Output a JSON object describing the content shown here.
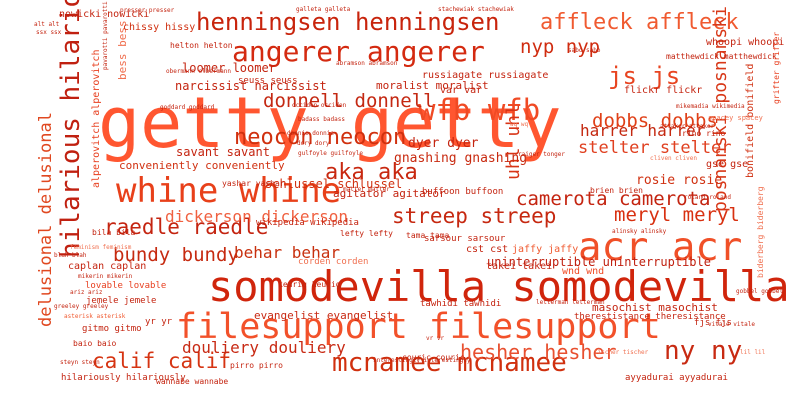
{
  "palette": [
    "#d62a0e",
    "#e8401a",
    "#f25a2c",
    "#c41f0a",
    "#ff6a3d",
    "#f07050"
  ],
  "words": [
    {
      "text": "getty getty",
      "color": "#ff5630"
    },
    {
      "text": "somodevilla somodevilla",
      "color": "#d0250c"
    },
    {
      "text": "filesupport filesupport",
      "color": "#f2512a"
    },
    {
      "text": "whine whine",
      "color": "#e8401a"
    },
    {
      "text": "acr acr",
      "color": "#f05028"
    },
    {
      "text": "angerer angerer",
      "color": "#d42a10"
    },
    {
      "text": "henningsen henningsen",
      "color": "#c8240c"
    },
    {
      "text": "hilarious hilarious",
      "color": "#c02010"
    },
    {
      "text": "delusional delusional",
      "color": "#e04820"
    },
    {
      "text": "mcnamee mcnamee",
      "color": "#d0300e"
    },
    {
      "text": "streep streep",
      "color": "#c62810"
    },
    {
      "text": "affleck affleck",
      "color": "#f05a30"
    },
    {
      "text": "hesher hesher",
      "color": "#e85030"
    },
    {
      "text": "ny ny",
      "color": "#c82a12"
    },
    {
      "text": "calif calif",
      "color": "#d63412"
    },
    {
      "text": "camerota camerota",
      "color": "#c42410"
    },
    {
      "text": "meryl meryl",
      "color": "#d83010"
    },
    {
      "text": "posnanski posnanski",
      "color": "#d83818"
    },
    {
      "text": "wfb wfb",
      "color": "#f04a24"
    },
    {
      "text": "js js",
      "color": "#e84420"
    },
    {
      "text": "neocon neocon",
      "color": "#d0300e"
    },
    {
      "text": "aka aka",
      "color": "#c82810"
    },
    {
      "text": "donnell donnell",
      "color": "#c42812"
    },
    {
      "text": "dobbs dobbs",
      "color": "#e04018"
    },
    {
      "text": "raedle raedle",
      "color": "#c42410"
    },
    {
      "text": "bundy bundy",
      "color": "#c62a10"
    },
    {
      "text": "behar behar",
      "color": "#c8300e"
    },
    {
      "text": "dickerson dickerson",
      "color": "#f06040"
    },
    {
      "text": "douliery douliery",
      "color": "#c82a14"
    },
    {
      "text": "uhl uhl",
      "color": "#d83416"
    },
    {
      "text": "nyp nyp",
      "color": "#d02c10"
    },
    {
      "text": "harrer harrer",
      "color": "#c42810"
    },
    {
      "text": "stelter stelter",
      "color": "#e04020"
    },
    {
      "text": "rosie rosie",
      "color": "#d03010"
    },
    {
      "text": "uninterruptible uninterruptible",
      "color": "#c02010"
    },
    {
      "text": "evangelist evangelist",
      "color": "#c82a14"
    },
    {
      "text": "masochist masochist",
      "color": "#c42410"
    },
    {
      "text": "savant savant",
      "color": "#c42410"
    },
    {
      "text": "conveniently conveniently",
      "color": "#d03010"
    },
    {
      "text": "dyer dyer",
      "color": "#c42410"
    },
    {
      "text": "gnashing gnashing",
      "color": "#c82a10"
    },
    {
      "text": "agitator agitator",
      "color": "#c42410"
    },
    {
      "text": "schlussel schlussel",
      "color": "#d03010"
    },
    {
      "text": "moralist moralist",
      "color": "#c42410"
    },
    {
      "text": "russiagate russiagate",
      "color": "#c42410"
    },
    {
      "text": "narcissist narcissist",
      "color": "#c42410"
    },
    {
      "text": "loomer loomer",
      "color": "#c42410"
    },
    {
      "text": "bess bess",
      "color": "#f07050"
    },
    {
      "text": "alperovitch alperovitch",
      "color": "#e84020"
    },
    {
      "text": "chissy hissy",
      "color": "#d03010"
    },
    {
      "text": "nowicki nowicki",
      "color": "#c42410"
    },
    {
      "text": "whoopi whoopi",
      "color": "#c42410"
    },
    {
      "text": "matthewdick matthewdick",
      "color": "#c42410"
    },
    {
      "text": "bonifield bonifield",
      "color": "#d03010"
    },
    {
      "text": "grifter grifter",
      "color": "#e84020"
    },
    {
      "text": "flickr flickr",
      "color": "#c42410"
    },
    {
      "text": "var var",
      "color": "#c42410"
    },
    {
      "text": "rino rino",
      "color": "#c42410"
    },
    {
      "text": "gse gse",
      "color": "#c42410"
    },
    {
      "text": "biderberg biderberg",
      "color": "#f07050"
    },
    {
      "text": "yashar yashar",
      "color": "#c42410"
    },
    {
      "text": "wikipedia wikipedia",
      "color": "#c42410"
    },
    {
      "text": "lefty lefty",
      "color": "#c42410"
    },
    {
      "text": "tama tama",
      "color": "#c42410"
    },
    {
      "text": "sarsour sarsour",
      "color": "#c42410"
    },
    {
      "text": "cst cst",
      "color": "#c42410"
    },
    {
      "text": "jaffy jaffy",
      "color": "#f05a30"
    },
    {
      "text": "takei takei",
      "color": "#c42410"
    },
    {
      "text": "wnd wnd",
      "color": "#f04a24"
    },
    {
      "text": "buffoon buffoon",
      "color": "#c42410"
    },
    {
      "text": "brien brien",
      "color": "#c42410"
    },
    {
      "text": "corden corden",
      "color": "#f07050"
    },
    {
      "text": "keurig keurig",
      "color": "#c42410"
    },
    {
      "text": "caplan caplan",
      "color": "#c42410"
    },
    {
      "text": "lovable lovable",
      "color": "#e84020"
    },
    {
      "text": "jemele jemele",
      "color": "#c42410"
    },
    {
      "text": "yr yr",
      "color": "#c42410"
    },
    {
      "text": "gitmo gitmo",
      "color": "#c42410"
    },
    {
      "text": "pirro pirro",
      "color": "#c42410"
    },
    {
      "text": "wannabe wannabe",
      "color": "#c42410"
    },
    {
      "text": "hilariously hilariously",
      "color": "#c42410"
    },
    {
      "text": "couric couric",
      "color": "#c42410"
    },
    {
      "text": "tawhidi tawhidi",
      "color": "#c42410"
    },
    {
      "text": "therestistance theresistance",
      "color": "#c42410"
    },
    {
      "text": "fjs fjs",
      "color": "#c42410"
    },
    {
      "text": "ayyadurai ayyadurai",
      "color": "#c42410"
    },
    {
      "text": "bila bila",
      "color": "#c42410"
    },
    {
      "text": "baio baio",
      "color": "#c42410"
    },
    {
      "text": "spacey spacey",
      "color": "#f07050"
    },
    {
      "text": "mikemadia wikimedia",
      "color": "#c42410"
    },
    {
      "text": "helton helton",
      "color": "#c42410"
    },
    {
      "text": "seuss seuss",
      "color": "#c42410"
    },
    {
      "text": "obermann olbermann",
      "color": "#c42410"
    },
    {
      "text": "donnie donnie",
      "color": "#c42410"
    },
    {
      "text": "dory dory",
      "color": "#c42410"
    },
    {
      "text": "gulfoyle guilfoyle",
      "color": "#c42410"
    },
    {
      "text": "badass badass",
      "color": "#c42410"
    },
    {
      "text": "attaker attaker",
      "color": "#c42410"
    },
    {
      "text": "cliven cliven",
      "color": "#f07050"
    },
    {
      "text": "roland roland",
      "color": "#c42410"
    },
    {
      "text": "alinsky alinsky",
      "color": "#c42410"
    },
    {
      "text": "letterman letterman",
      "color": "#c42410"
    },
    {
      "text": "steyn steyn",
      "color": "#c42410"
    },
    {
      "text": "interestingly interestingly",
      "color": "#c42410"
    },
    {
      "text": "tischer tischer",
      "color": "#f07050"
    },
    {
      "text": "vitale vitale",
      "color": "#c42410"
    },
    {
      "text": "feminism feminism",
      "color": "#f07050"
    },
    {
      "text": "blah blah",
      "color": "#c42410"
    },
    {
      "text": "mikerin mikerin",
      "color": "#c42410"
    },
    {
      "text": "ariz ariz",
      "color": "#c42410"
    },
    {
      "text": "greeley greeley",
      "color": "#c42410"
    },
    {
      "text": "asterisk asterisk",
      "color": "#f05a30"
    },
    {
      "text": "stachewiak stachewiak",
      "color": "#c42410"
    },
    {
      "text": "pavarotti pavarotti",
      "color": "#c42410"
    },
    {
      "text": "goddard goddard",
      "color": "#c42410"
    },
    {
      "text": "sabo sabo",
      "color": "#c42410"
    },
    {
      "text": "presser presser",
      "color": "#c42410"
    },
    {
      "text": "galleta galleta",
      "color": "#c42410"
    },
    {
      "text": "gobbel gobbel",
      "color": "#c42410"
    },
    {
      "text": "occiden occiden",
      "color": "#c42410"
    },
    {
      "text": "abramson abramson",
      "color": "#c42410"
    },
    {
      "text": "raiger tonger",
      "color": "#c42410"
    },
    {
      "text": "matter matter",
      "color": "#c42410"
    },
    {
      "text": "lil lil",
      "color": "#f07050"
    },
    {
      "text": "vr vr",
      "color": "#c42410"
    },
    {
      "text": "alt alt",
      "color": "#c42410"
    },
    {
      "text": "ssx ssx",
      "color": "#c42410"
    },
    {
      "text": "wq wq",
      "color": "#f07050"
    }
  ]
}
